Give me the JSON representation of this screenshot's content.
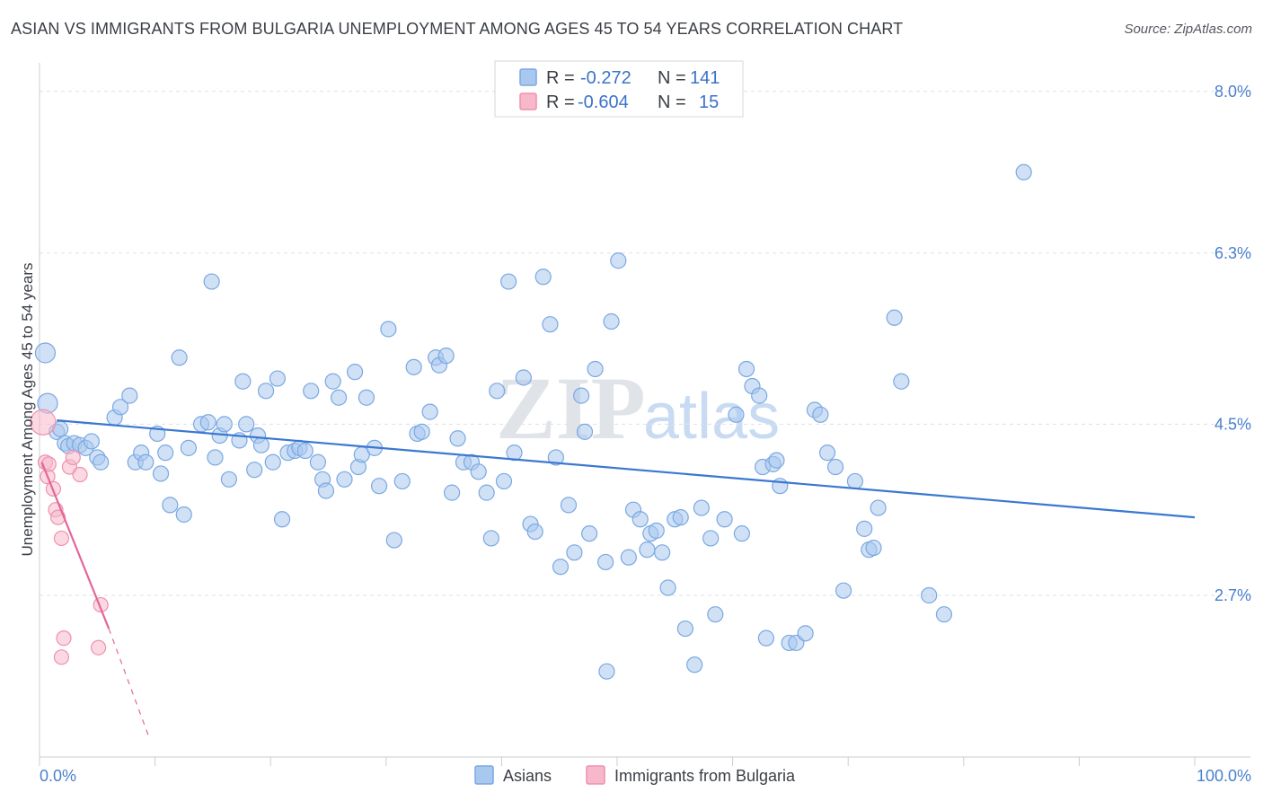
{
  "title": "ASIAN VS IMMIGRANTS FROM BULGARIA UNEMPLOYMENT AMONG AGES 45 TO 54 YEARS CORRELATION CHART",
  "source": "Source: ZipAtlas.com",
  "watermark": {
    "zip": "ZIP",
    "atlas": "atlas"
  },
  "legend_top": {
    "rows": [
      {
        "r_label": "R =",
        "r_value": "-0.272",
        "n_label": "N =",
        "n_value": "141"
      },
      {
        "r_label": "R =",
        "r_value": "-0.604",
        "n_label": "N =",
        "n_value": "15"
      }
    ]
  },
  "colors": {
    "asians_fill": "#a9c8ef",
    "asians_stroke": "#7aa8e2",
    "asians_line": "#3a78d1",
    "bulgaria_fill": "#f7b8cb",
    "bulgaria_stroke": "#ee91ad",
    "bulgaria_line": "#e2679a",
    "tick_label": "#4a7fcf",
    "grid": "#dde1e6"
  },
  "chart_data": {
    "type": "scatter",
    "title": "ASIAN VS IMMIGRANTS FROM BULGARIA UNEMPLOYMENT AMONG AGES 45 TO 54 YEARS CORRELATION CHART",
    "xlabel": "",
    "ylabel": "Unemployment Among Ages 45 to 54 years",
    "xlim": [
      0,
      100
    ],
    "ylim": [
      1.0,
      8.3
    ],
    "x_tick_labels": [
      "0.0%",
      "100.0%"
    ],
    "y_ticks": [
      2.7,
      4.5,
      6.3,
      8.0
    ],
    "y_tick_labels": [
      "2.7%",
      "4.5%",
      "6.3%",
      "8.0%"
    ],
    "grid": true,
    "legend_position": "top-center",
    "series": [
      {
        "name": "Asians",
        "R": -0.272,
        "N": 141,
        "trend": {
          "x": [
            1.5,
            100
          ],
          "y": [
            4.54,
            3.52
          ]
        },
        "points": [
          [
            0.5,
            5.25
          ],
          [
            0.7,
            4.72
          ],
          [
            1.5,
            4.42
          ],
          [
            1.8,
            4.45
          ],
          [
            2.2,
            4.3
          ],
          [
            2.5,
            4.27
          ],
          [
            3.0,
            4.3
          ],
          [
            3.5,
            4.28
          ],
          [
            4.0,
            4.25
          ],
          [
            4.5,
            4.32
          ],
          [
            5.0,
            4.15
          ],
          [
            5.3,
            4.1
          ],
          [
            6.5,
            4.57
          ],
          [
            7.0,
            4.68
          ],
          [
            7.8,
            4.8
          ],
          [
            8.3,
            4.1
          ],
          [
            8.8,
            4.2
          ],
          [
            9.2,
            4.1
          ],
          [
            10.2,
            4.4
          ],
          [
            10.5,
            3.98
          ],
          [
            10.9,
            4.2
          ],
          [
            11.3,
            3.65
          ],
          [
            12.1,
            5.2
          ],
          [
            12.5,
            3.55
          ],
          [
            12.9,
            4.25
          ],
          [
            14.0,
            4.5
          ],
          [
            14.6,
            4.52
          ],
          [
            14.9,
            6.0
          ],
          [
            15.2,
            4.15
          ],
          [
            15.6,
            4.38
          ],
          [
            16.0,
            4.5
          ],
          [
            16.4,
            3.92
          ],
          [
            17.3,
            4.33
          ],
          [
            17.6,
            4.95
          ],
          [
            17.9,
            4.5
          ],
          [
            18.6,
            4.02
          ],
          [
            18.9,
            4.38
          ],
          [
            19.2,
            4.28
          ],
          [
            19.6,
            4.85
          ],
          [
            20.2,
            4.1
          ],
          [
            20.6,
            4.98
          ],
          [
            21.0,
            3.5
          ],
          [
            21.5,
            4.2
          ],
          [
            22.1,
            4.22
          ],
          [
            22.5,
            4.25
          ],
          [
            23.0,
            4.22
          ],
          [
            23.5,
            4.85
          ],
          [
            24.1,
            4.1
          ],
          [
            24.5,
            3.92
          ],
          [
            24.8,
            3.8
          ],
          [
            25.4,
            4.95
          ],
          [
            25.9,
            4.78
          ],
          [
            26.4,
            3.92
          ],
          [
            27.3,
            5.05
          ],
          [
            27.6,
            4.05
          ],
          [
            27.9,
            4.18
          ],
          [
            28.3,
            4.78
          ],
          [
            29.0,
            4.25
          ],
          [
            29.4,
            3.85
          ],
          [
            30.2,
            5.5
          ],
          [
            30.7,
            3.28
          ],
          [
            31.4,
            3.9
          ],
          [
            32.4,
            5.1
          ],
          [
            32.7,
            4.4
          ],
          [
            33.1,
            4.42
          ],
          [
            33.8,
            4.63
          ],
          [
            34.3,
            5.2
          ],
          [
            34.6,
            5.12
          ],
          [
            35.2,
            5.22
          ],
          [
            35.7,
            3.78
          ],
          [
            36.2,
            4.35
          ],
          [
            36.7,
            4.1
          ],
          [
            37.4,
            4.1
          ],
          [
            38.0,
            4.0
          ],
          [
            38.7,
            3.78
          ],
          [
            39.1,
            3.3
          ],
          [
            39.6,
            4.85
          ],
          [
            40.2,
            3.9
          ],
          [
            40.6,
            6.0
          ],
          [
            41.1,
            4.2
          ],
          [
            41.9,
            4.99
          ],
          [
            42.5,
            3.45
          ],
          [
            42.9,
            3.37
          ],
          [
            43.6,
            6.05
          ],
          [
            44.2,
            5.55
          ],
          [
            44.7,
            4.15
          ],
          [
            45.1,
            3.0
          ],
          [
            45.8,
            3.65
          ],
          [
            46.3,
            3.15
          ],
          [
            46.9,
            4.8
          ],
          [
            47.2,
            4.42
          ],
          [
            47.6,
            3.35
          ],
          [
            48.1,
            5.08
          ],
          [
            49.0,
            3.05
          ],
          [
            49.5,
            5.58
          ],
          [
            50.1,
            6.22
          ],
          [
            51.0,
            3.1
          ],
          [
            51.4,
            3.6
          ],
          [
            52.0,
            3.5
          ],
          [
            52.6,
            3.18
          ],
          [
            52.9,
            3.35
          ],
          [
            53.4,
            3.38
          ],
          [
            53.9,
            3.15
          ],
          [
            54.4,
            2.78
          ],
          [
            55.0,
            3.5
          ],
          [
            55.5,
            3.52
          ],
          [
            55.9,
            2.35
          ],
          [
            56.7,
            1.97
          ],
          [
            57.3,
            3.62
          ],
          [
            58.1,
            3.3
          ],
          [
            58.5,
            2.5
          ],
          [
            59.3,
            3.5
          ],
          [
            60.3,
            4.6
          ],
          [
            60.8,
            3.35
          ],
          [
            61.2,
            5.08
          ],
          [
            61.7,
            4.9
          ],
          [
            62.3,
            4.8
          ],
          [
            62.6,
            4.05
          ],
          [
            63.5,
            4.08
          ],
          [
            64.1,
            3.85
          ],
          [
            63.8,
            4.12
          ],
          [
            64.9,
            2.2
          ],
          [
            65.5,
            2.2
          ],
          [
            66.3,
            2.3
          ],
          [
            67.1,
            4.65
          ],
          [
            67.6,
            4.6
          ],
          [
            68.2,
            4.2
          ],
          [
            68.9,
            4.05
          ],
          [
            69.6,
            2.75
          ],
          [
            70.6,
            3.9
          ],
          [
            71.4,
            3.4
          ],
          [
            71.8,
            3.18
          ],
          [
            72.2,
            3.2
          ],
          [
            72.6,
            3.62
          ],
          [
            74.0,
            5.62
          ],
          [
            74.6,
            4.95
          ],
          [
            77.0,
            2.7
          ],
          [
            78.3,
            2.5
          ],
          [
            85.2,
            7.15
          ],
          [
            49.1,
            1.9
          ],
          [
            62.9,
            2.25
          ]
        ]
      },
      {
        "name": "Immigrants from Bulgaria",
        "R": -0.604,
        "N": 15,
        "trend": {
          "x": [
            0.2,
            6.0
          ],
          "y": [
            4.1,
            2.35
          ]
        },
        "trend_extension": {
          "x": [
            6.0,
            9.5
          ],
          "y": [
            2.35,
            1.2
          ]
        },
        "points": [
          [
            0.3,
            4.52
          ],
          [
            0.5,
            4.1
          ],
          [
            0.7,
            3.95
          ],
          [
            0.8,
            4.08
          ],
          [
            1.2,
            3.82
          ],
          [
            1.4,
            3.6
          ],
          [
            1.6,
            3.52
          ],
          [
            1.9,
            3.3
          ],
          [
            2.1,
            2.25
          ],
          [
            1.9,
            2.05
          ],
          [
            2.6,
            4.05
          ],
          [
            2.9,
            4.15
          ],
          [
            3.5,
            3.97
          ],
          [
            5.3,
            2.6
          ],
          [
            5.1,
            2.15
          ]
        ]
      }
    ]
  },
  "bottom_legend": [
    {
      "label": "Asians"
    },
    {
      "label": "Immigrants from Bulgaria"
    }
  ]
}
